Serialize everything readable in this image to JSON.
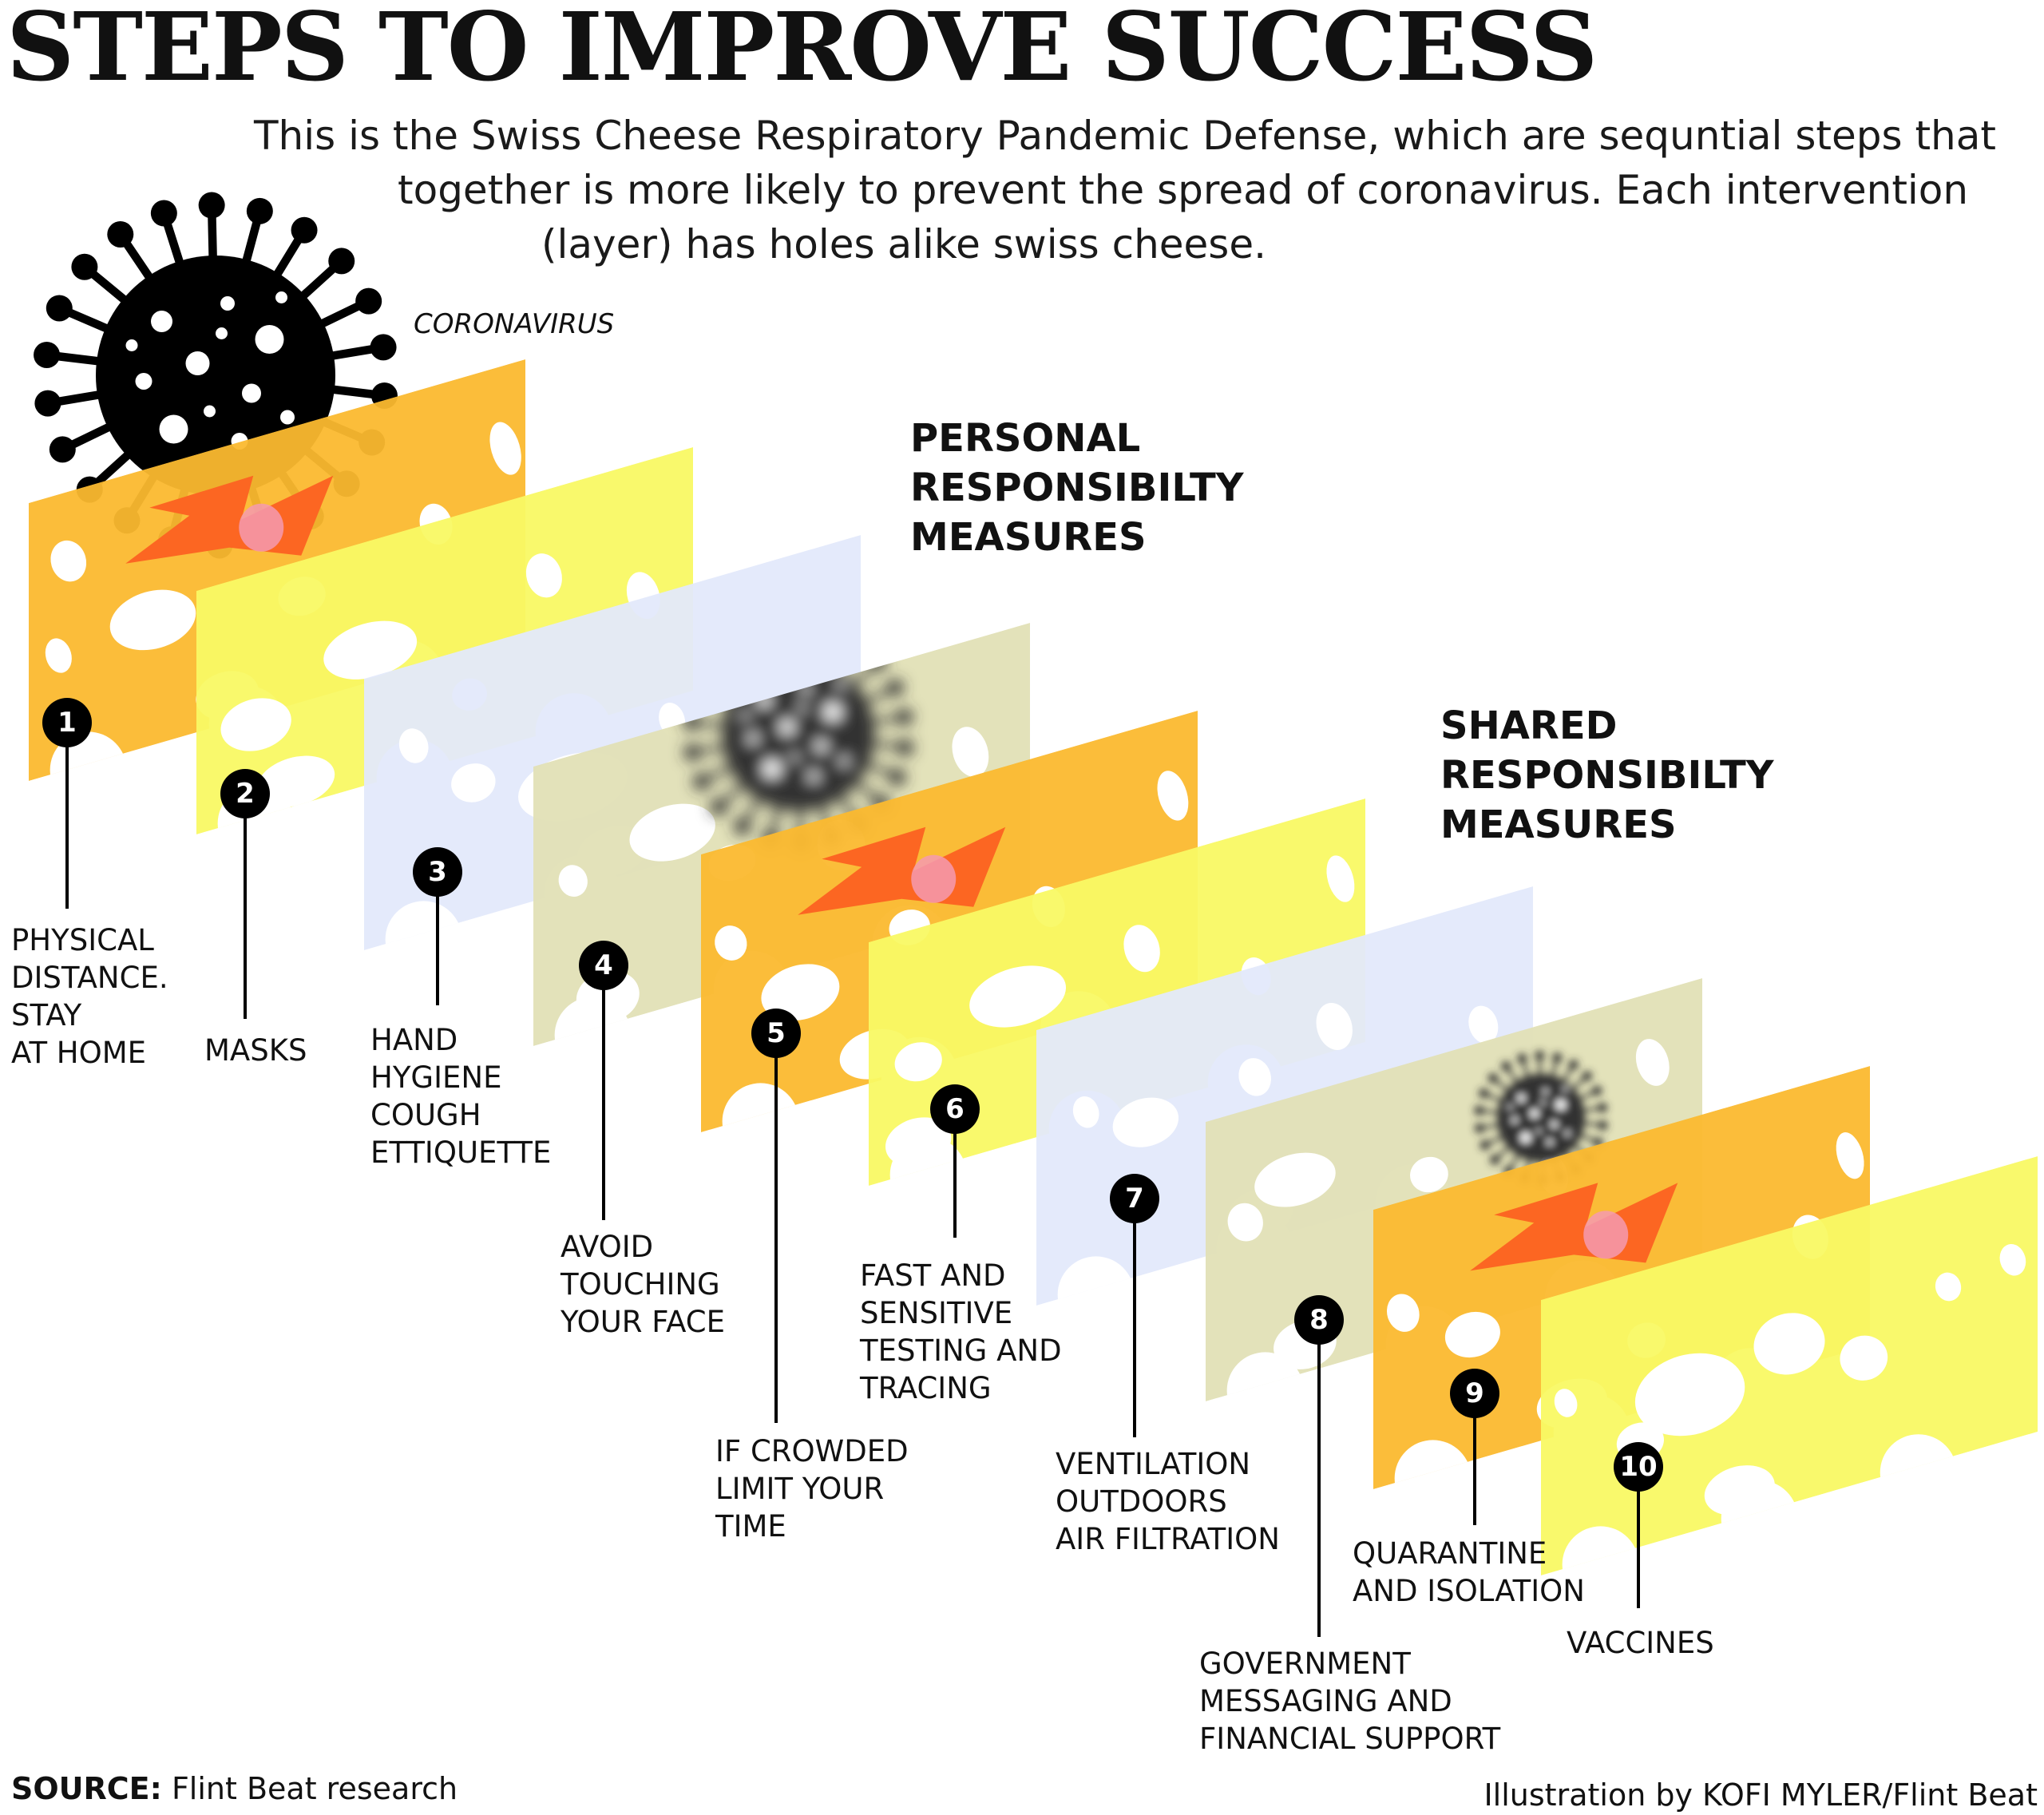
{
  "title": "STEPS TO IMPROVE SUCCESS",
  "subtitle_lines": [
    "This is the Swiss Cheese Respiratory Pandemic Defense, which are sequntial steps that",
    "together is more likely to prevent the spread of coronavirus. Each intervention",
    "(layer) has holes alike swiss cheese."
  ],
  "virus_label": "CORONAVIRUS",
  "personal_heading": [
    "PERSONAL",
    "RESPONSIBILTY",
    "MEASURES"
  ],
  "shared_heading": [
    "SHARED",
    "RESPONSIBILTY",
    "MEASURES"
  ],
  "colors": {
    "orange": "#fbb92f",
    "yellow": "#f9f964",
    "blue": "#e3e9fb",
    "tan": "#e2e0b6",
    "arrow": "#fc6622",
    "marker": "#000000"
  },
  "steps": [
    {
      "num": "1",
      "lines": [
        "PHYSICAL",
        "DISTANCE.",
        "STAY",
        "AT HOME"
      ]
    },
    {
      "num": "2",
      "lines": [
        "MASKS"
      ]
    },
    {
      "num": "3",
      "lines": [
        "HAND",
        "HYGIENE",
        "COUGH",
        "ETTIQUETTE"
      ]
    },
    {
      "num": "4",
      "lines": [
        "AVOID",
        "TOUCHING",
        "YOUR FACE"
      ]
    },
    {
      "num": "5",
      "lines": [
        "IF CROWDED",
        "LIMIT YOUR",
        "TIME"
      ]
    },
    {
      "num": "6",
      "lines": [
        "FAST AND",
        "SENSITIVE",
        "TESTING AND",
        "TRACING"
      ]
    },
    {
      "num": "7",
      "lines": [
        "VENTILATION",
        "OUTDOORS",
        "AIR FILTRATION"
      ]
    },
    {
      "num": "8",
      "lines": [
        "GOVERNMENT",
        "MESSAGING AND",
        "FINANCIAL SUPPORT"
      ]
    },
    {
      "num": "9",
      "lines": [
        "QUARANTINE",
        "AND ISOLATION"
      ]
    },
    {
      "num": "10",
      "lines": [
        "VACCINES"
      ]
    }
  ],
  "source_label": "SOURCE:",
  "source_text": "Flint Beat research",
  "credit": "Illustration by KOFI MYLER/Flint Beat"
}
